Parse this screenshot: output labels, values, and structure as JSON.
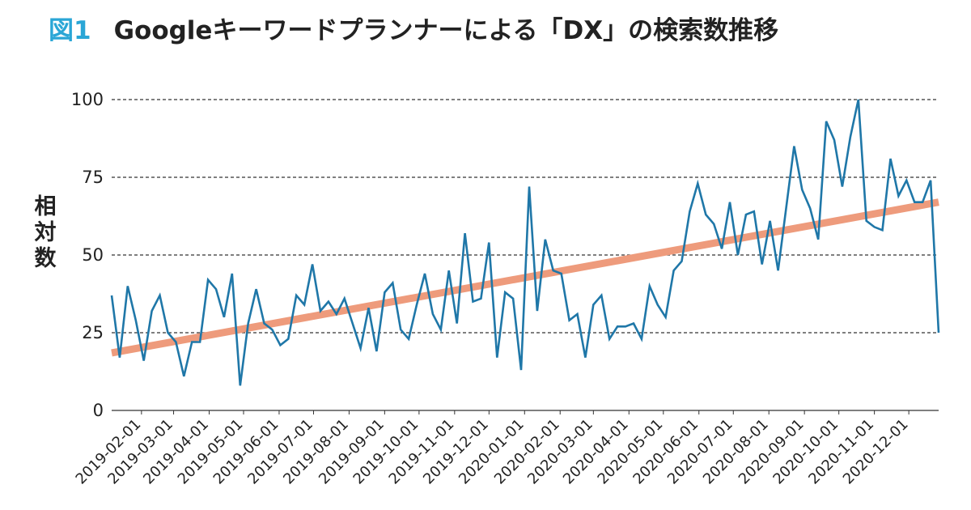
{
  "header": {
    "figure_label": "図1",
    "title": "Googleキーワードプランナーによる「DX」の検索数推移"
  },
  "colors": {
    "figure_label": "#2aa6d6",
    "series": "#1f77a8",
    "trend": "#ee9b7c",
    "grid": "#333333"
  },
  "chart_data": {
    "type": "line",
    "title": "Googleキーワードプランナーによる「DX」の検索数推移",
    "ylabel": "相対数",
    "xlabel": "",
    "ylim": [
      0,
      100
    ],
    "yticks": [
      0,
      25,
      50,
      75,
      100
    ],
    "grid": "horizontal dashed",
    "x_ticks": [
      "2019-02-01",
      "2019-03-01",
      "2019-04-01",
      "2019-05-01",
      "2019-06-01",
      "2019-07-01",
      "2019-08-01",
      "2019-09-01",
      "2019-10-01",
      "2019-11-01",
      "2019-12-01",
      "2020-01-01",
      "2020-02-01",
      "2020-03-01",
      "2020-04-01",
      "2020-05-01",
      "2020-06-01",
      "2020-07-01",
      "2020-08-01",
      "2020-09-01",
      "2020-10-01",
      "2020-11-01",
      "2020-12-01"
    ],
    "x_start": "2019-01-06",
    "x_end": "2020-12-27",
    "x_frequency": "weekly",
    "series": [
      {
        "type": "line",
        "values": [
          37,
          17,
          40,
          29,
          16,
          32,
          37,
          25,
          22,
          11,
          22,
          22,
          42,
          39,
          30,
          44,
          8,
          28,
          39,
          28,
          26,
          21,
          23,
          37,
          34,
          47,
          32,
          35,
          31,
          36,
          28,
          20,
          33,
          19,
          38,
          41,
          26,
          23,
          34,
          44,
          31,
          26,
          45,
          28,
          57,
          35,
          36,
          54,
          17,
          38,
          36,
          13,
          72,
          32,
          55,
          45,
          44,
          29,
          31,
          17,
          34,
          37,
          23,
          27,
          27,
          28,
          23,
          40,
          34,
          30,
          45,
          48,
          64,
          73,
          63,
          60,
          52,
          67,
          50,
          63,
          64,
          47,
          61,
          45,
          65,
          85,
          71,
          65,
          55,
          93,
          87,
          72,
          88,
          100,
          61,
          59,
          58,
          81,
          69,
          74,
          67,
          67,
          74,
          25
        ]
      },
      {
        "type": "trend",
        "values": [
          18.5,
          67
        ]
      }
    ]
  }
}
